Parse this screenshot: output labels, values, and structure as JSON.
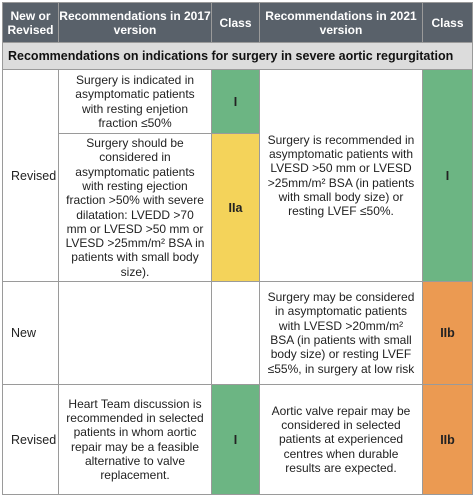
{
  "header": {
    "new_or_revised": "New or Revised",
    "rec_2017": "Recommendations in 2017 version",
    "class_2017": "Class",
    "rec_2021": "Recommendations in 2021 version",
    "class_2021": "Class"
  },
  "section_title": "Recommendations on indications for surgery in severe aortic regurgitation",
  "rows": [
    {
      "type": "Revised",
      "rec_2017_a": "Surgery is indicated in asymptomatic patients with resting enjetion fraction ≤50%",
      "class_2017_a": "I",
      "rec_2017_b": "Surgery should be considered in asymptomatic patients with resting ejection fraction >50% with severe dilatation: LVEDD >70 mm or LVESD >50 mm or LVESD >25mm/m² BSA in patients with small body size).",
      "class_2017_b": "IIa",
      "rec_2021": "Surgery is recommended in asymptomatic patients with LVESD >50 mm or LVESD >25mm/m² BSA (in patients with small body size) or resting LVEF ≤50%.",
      "class_2021": "I"
    },
    {
      "type": "New",
      "rec_2017": "",
      "class_2017": "",
      "rec_2021": "Surgery may be considered in asymptomatic patients with LVESD >20mm/m² BSA (in patients with small body size) or resting LVEF ≤55%, in surgery at low risk",
      "class_2021": "IIb"
    },
    {
      "type": "Revised",
      "rec_2017": "Heart Team discussion is recommended in selected patients in whom aortic repair may be a feasible alternative to valve replacement.",
      "class_2017": "I",
      "rec_2021": "Aortic valve repair may be considered in selected patients at experienced centres when durable results are expected.",
      "class_2021": "IIb"
    }
  ],
  "colors": {
    "header_bg": "#59616a",
    "section_bg": "#dcdcdc",
    "class_I": "#6cb583",
    "class_IIa": "#f4d35a",
    "class_IIb": "#eb9a52"
  }
}
